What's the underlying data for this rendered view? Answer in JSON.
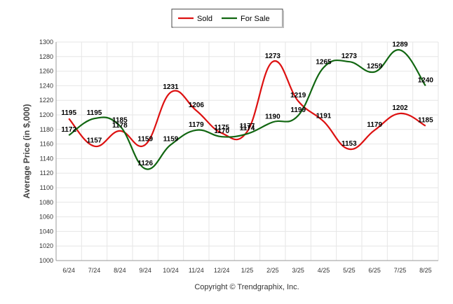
{
  "chart_data": {
    "type": "line",
    "title": "",
    "xlabel": "",
    "ylabel": "Average Price (in $,000)",
    "ylim": [
      1000,
      1300
    ],
    "y_tick_step": 20,
    "grid": true,
    "legend_position": "top-center",
    "categories": [
      "6/24",
      "7/24",
      "8/24",
      "9/24",
      "10/24",
      "11/24",
      "12/24",
      "1/25",
      "2/25",
      "3/25",
      "4/25",
      "5/25",
      "6/25",
      "7/25",
      "8/25"
    ],
    "series": [
      {
        "name": "Sold",
        "color": "#dd1111",
        "values": [
          1195,
          1157,
          1178,
          1159,
          1231,
          1206,
          1175,
          1177,
          1273,
          1219,
          1191,
          1153,
          1179,
          1202,
          1185
        ]
      },
      {
        "name": "For Sale",
        "color": "#116611",
        "values": [
          1172,
          1195,
          1185,
          1126,
          1159,
          1179,
          1170,
          1174,
          1190,
          1199,
          1265,
          1273,
          1259,
          1289,
          1240
        ]
      }
    ]
  },
  "footer": {
    "copyright": "Copyright © Trendgraphix, Inc."
  }
}
